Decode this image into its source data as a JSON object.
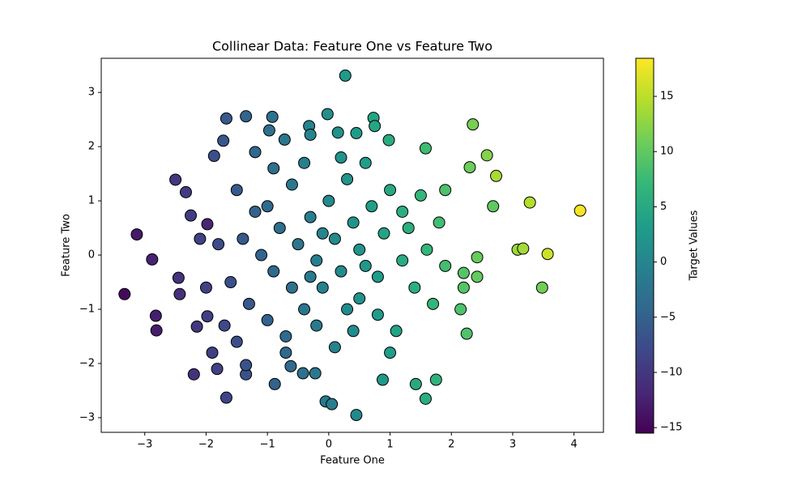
{
  "chart_data": {
    "type": "scatter",
    "title": "Collinear Data: Feature One vs Feature Two",
    "x_label": "Feature One",
    "y_label": "Feature Two",
    "colorbar_label": "Target Values",
    "colormap": "viridis",
    "xlim": [
      -3.71,
      4.48
    ],
    "ylim": [
      -3.27,
      3.63
    ],
    "xticks": [
      {
        "value": -3,
        "label": "−3"
      },
      {
        "value": -2,
        "label": "−2"
      },
      {
        "value": -1,
        "label": "−1"
      },
      0,
      1,
      2,
      3,
      4
    ],
    "yticks": [
      {
        "value": -3,
        "label": "−3"
      },
      {
        "value": -2,
        "label": "−2"
      },
      {
        "value": -1,
        "label": "−1"
      },
      0,
      1,
      2,
      3
    ],
    "colorbar_lim": [
      -15.5,
      18.45
    ],
    "colorbar_ticks": [
      {
        "value": -15,
        "label": "−15"
      },
      {
        "value": -10,
        "label": "−10"
      },
      {
        "value": -5,
        "label": "−5"
      },
      0,
      5,
      10,
      15
    ],
    "x": [
      -3.33,
      -3.13,
      -2.88,
      -2.82,
      -2.81,
      -2.5,
      -2.33,
      -2.45,
      -2.43,
      -2.25,
      -2.2,
      -2.15,
      -1.98,
      -1.98,
      -1.9,
      -1.82,
      -1.67,
      -1.87,
      -1.72,
      -1.67,
      -1.35,
      -0.92,
      -0.97,
      -0.72,
      -0.32,
      -0.3,
      0.27,
      -0.02,
      0.15,
      0.73,
      0.75,
      0.45,
      0.98,
      1.58,
      2.35,
      2.58,
      2.3,
      2.73,
      3.28,
      4.1,
      3.57,
      3.08,
      3.17,
      3.48,
      2.68,
      2.42,
      2.42,
      2.2,
      2.2,
      2.15,
      2.25,
      1.75,
      1.58,
      1.42,
      0.88,
      0.45,
      -0.05,
      0.05,
      -0.88,
      -1.35,
      -1.35,
      -0.42,
      -0.22,
      -0.62,
      -1.5,
      -1.2,
      -0.8,
      -0.5,
      -0.2,
      0.1,
      0.4,
      0.7,
      1.0,
      1.3,
      1.6,
      1.9,
      -1.6,
      -1.3,
      -1.0,
      -0.7,
      -0.4,
      -0.1,
      0.2,
      0.5,
      0.8,
      1.1,
      1.4,
      1.7,
      -1.8,
      -1.4,
      -1.1,
      -0.9,
      -0.6,
      -0.3,
      0.0,
      0.3,
      0.6,
      0.9,
      1.2,
      -0.6,
      -0.9,
      -1.2,
      0.2,
      0.5,
      0.8,
      -0.2,
      0.1,
      0.4,
      -1.0,
      -0.4,
      1.5,
      1.8,
      1.9,
      -2.0,
      -1.7,
      -2.1,
      -0.1,
      0.3,
      1.0,
      -0.7,
      0.6,
      -1.5,
      1.2,
      -0.3
    ],
    "values": [
      -0.72,
      0.38,
      -0.08,
      -1.12,
      -1.39,
      1.39,
      1.16,
      -0.42,
      -0.72,
      0.73,
      -2.2,
      -1.32,
      0.57,
      -1.13,
      -1.8,
      -2.1,
      -2.63,
      1.83,
      2.11,
      2.52,
      2.56,
      2.55,
      2.3,
      2.13,
      2.38,
      2.22,
      3.31,
      2.6,
      2.26,
      2.53,
      2.38,
      2.25,
      2.12,
      1.97,
      2.41,
      1.84,
      1.62,
      1.46,
      0.97,
      0.82,
      0.02,
      0.1,
      0.12,
      -0.6,
      0.9,
      -0.04,
      -0.4,
      -0.33,
      -0.6,
      -1.0,
      -1.45,
      -2.3,
      -2.65,
      -2.38,
      -2.3,
      -2.95,
      -2.7,
      -2.75,
      -2.38,
      -2.2,
      -2.03,
      -2.18,
      -2.18,
      -2.05,
      1.2,
      0.8,
      0.5,
      0.2,
      -0.1,
      0.3,
      0.6,
      0.9,
      1.2,
      0.5,
      0.1,
      -0.2,
      -0.5,
      -0.9,
      -1.2,
      -1.5,
      -1.0,
      -0.6,
      -0.3,
      -0.8,
      -1.1,
      -1.4,
      -0.6,
      -0.9,
      0.2,
      0.3,
      0.0,
      -0.3,
      -0.6,
      0.7,
      1.0,
      1.4,
      1.7,
      0.4,
      -0.1,
      1.3,
      1.6,
      1.9,
      1.8,
      0.1,
      -0.4,
      -1.3,
      -1.7,
      -1.4,
      0.9,
      1.7,
      1.1,
      0.6,
      1.2,
      -0.6,
      -1.3,
      0.3,
      0.4,
      -1.0,
      -1.8,
      -1.8,
      -0.2,
      -1.6,
      0.8,
      -0.4
    ],
    "color_values": [
      -14.7,
      -13.3,
      -12.4,
      -12.7,
      -12.8,
      -10.1,
      -9.4,
      -10.7,
      -10.8,
      -9.3,
      -10.6,
      -9.9,
      -12,
      -9.1,
      -9.1,
      -8.9,
      -8.5,
      -7.1,
      -6.3,
      -5.9,
      -4.5,
      -2.7,
      -3.0,
      -2.0,
      -0.2,
      -0.2,
      2.8,
      1.2,
      1.8,
      4.4,
      4.4,
      3.1,
      5.3,
      7.8,
      11.3,
      12.0,
      10.7,
      14,
      14.6,
      18.0,
      16,
      13.3,
      13.7,
      11,
      10,
      10.4,
      10.2,
      9.3,
      9.2,
      8.7,
      9.0,
      6.4,
      5.5,
      4.9,
      2.6,
      0.5,
      -1.6,
      -1.2,
      -5.0,
      -6.9,
      -6.8,
      -2.9,
      -2.0,
      -3.7,
      -5.9,
      -4.8,
      -3.2,
      -2.1,
      -0.9,
      0.6,
      2.0,
      3.5,
      4.9,
      5.8,
      6.9,
      8.1,
      -7.1,
      -6.0,
      -4.9,
      -3.8,
      -2.2,
      -0.7,
      0.7,
      1.8,
      2.9,
      4.0,
      5.7,
      6.9,
      -7.6,
      -5.9,
      -4.7,
      -4.0,
      -2.9,
      -0.9,
      0.5,
      2.0,
      3.4,
      4.1,
      5.1,
      -1.9,
      -3.1,
      -4.2,
      1.8,
      2.2,
      3.2,
      -1.5,
      -0.4,
      1.0,
      -3.9,
      -0.9,
      7.0,
      8.0,
      8.8,
      -8.9,
      -8.0,
      -8.9,
      -0.2,
      0.8,
      3.4,
      -3.9,
      2.5,
      -7.3,
      5.6,
      -1.5
    ]
  }
}
